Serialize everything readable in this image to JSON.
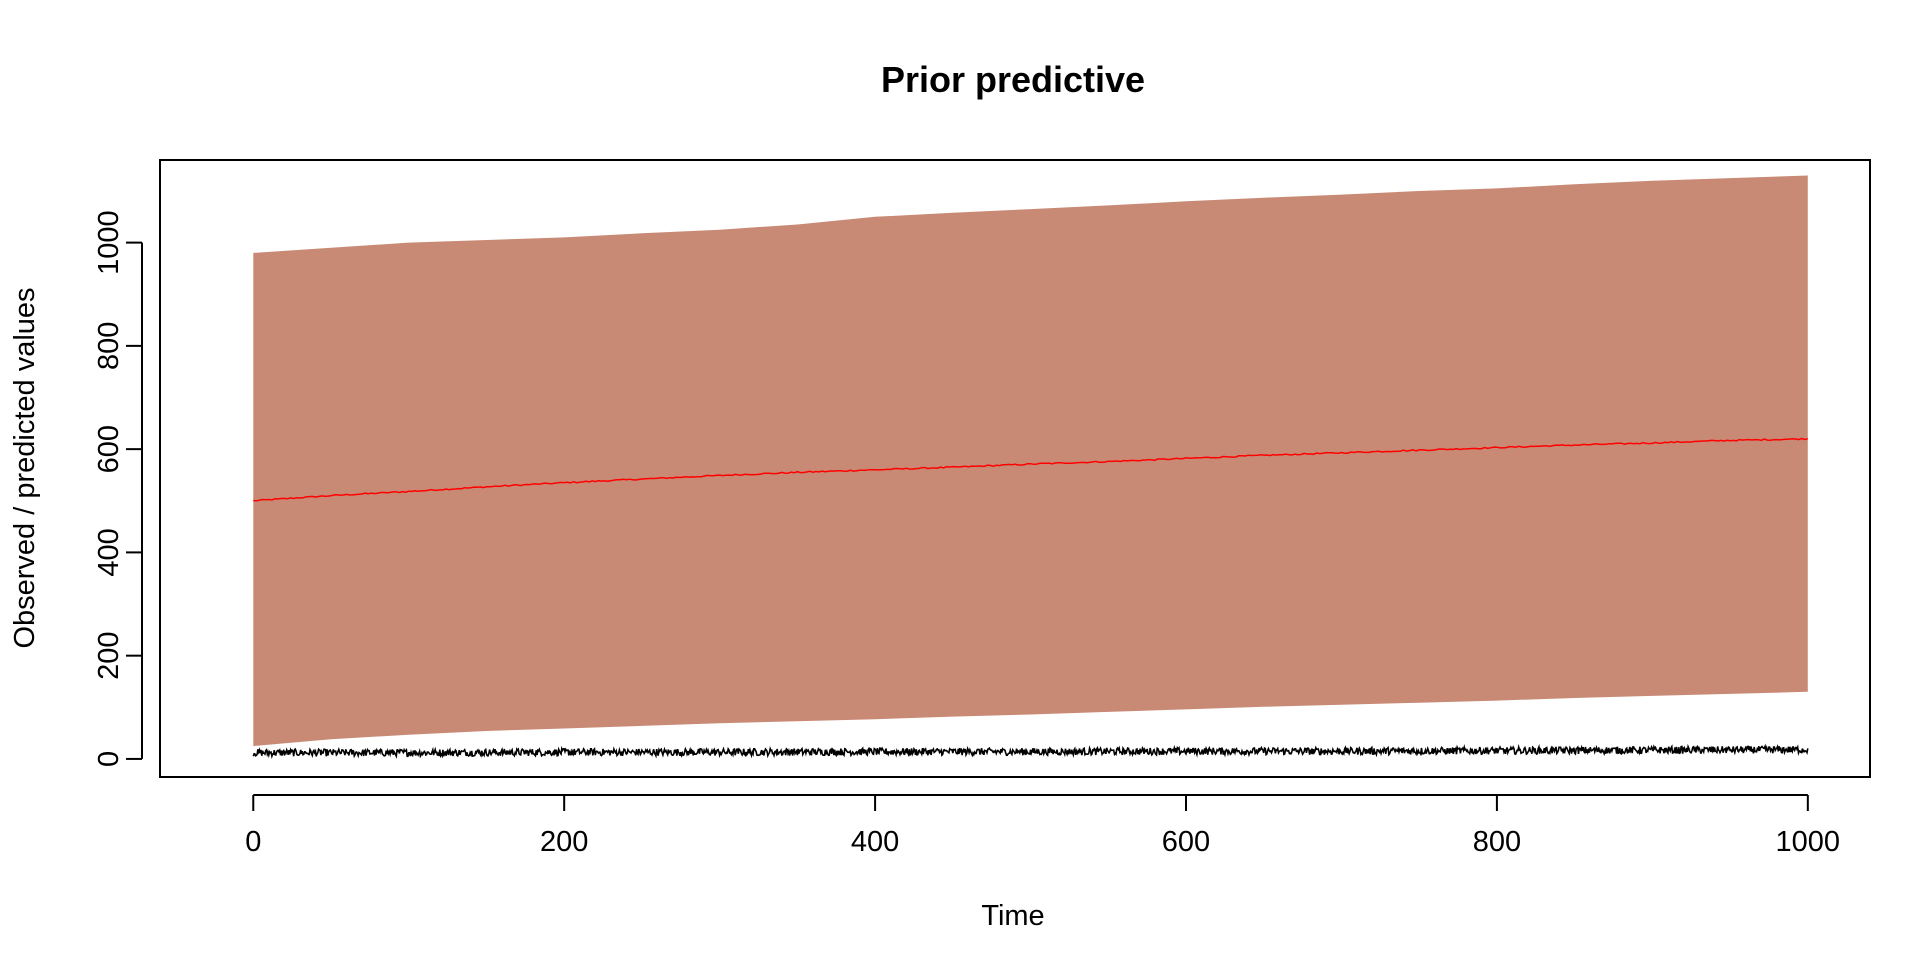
{
  "chart_data": {
    "type": "area",
    "title": "Prior predictive",
    "xlabel": "Time",
    "ylabel": "Observed / predicted values",
    "xlim": [
      -60,
      1040
    ],
    "ylim": [
      -35,
      1160
    ],
    "x_ticks": [
      0,
      200,
      400,
      600,
      800,
      1000
    ],
    "y_ticks": [
      0,
      200,
      400,
      600,
      800,
      1000
    ],
    "grid": false,
    "legend": "none",
    "series": [
      {
        "kind": "band",
        "color": "#c98a75",
        "x": [
          0,
          50,
          100,
          150,
          200,
          250,
          300,
          350,
          400,
          450,
          500,
          550,
          600,
          650,
          700,
          750,
          800,
          850,
          900,
          950,
          1000
        ],
        "upper": [
          980,
          990,
          1000,
          1005,
          1010,
          1018,
          1025,
          1035,
          1050,
          1058,
          1065,
          1072,
          1080,
          1087,
          1093,
          1100,
          1105,
          1113,
          1120,
          1125,
          1130
        ],
        "lower": [
          25,
          38,
          47,
          54,
          59,
          64,
          69,
          73,
          77,
          82,
          86,
          91,
          96,
          101,
          105,
          109,
          113,
          118,
          122,
          126,
          130
        ]
      },
      {
        "kind": "line",
        "color": "#ff0000",
        "x": [
          0,
          50,
          100,
          150,
          200,
          250,
          300,
          350,
          400,
          450,
          500,
          550,
          600,
          650,
          700,
          750,
          800,
          850,
          900,
          950,
          1000
        ],
        "values": [
          500,
          510,
          518,
          527,
          535,
          542,
          549,
          555,
          560,
          565,
          571,
          576,
          582,
          588,
          593,
          598,
          603,
          608,
          612,
          617,
          620
        ]
      },
      {
        "kind": "observed",
        "color": "#000000",
        "x": [
          0,
          100,
          200,
          300,
          400,
          500,
          600,
          700,
          800,
          900,
          1000
        ],
        "values": [
          12,
          12,
          13,
          13,
          14,
          14,
          15,
          15,
          16,
          17,
          18
        ],
        "noise": 7
      }
    ]
  }
}
